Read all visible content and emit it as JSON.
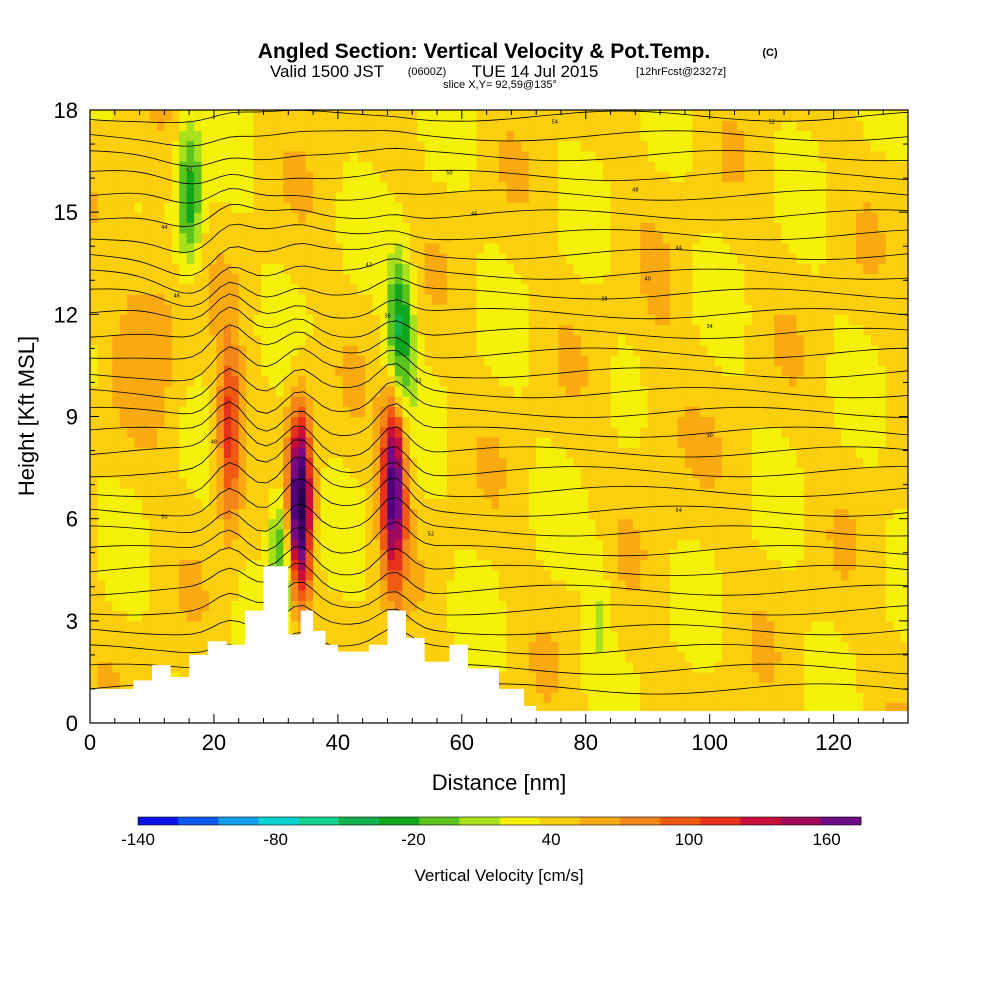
{
  "title": {
    "main": "Angled Section: Vertical Velocity & Pot.Temp.",
    "main_suffix": "(C)",
    "valid_a": "Valid 1500 JST",
    "valid_b": "(0600Z)",
    "valid_c": "TUE 14 Jul 2015",
    "valid_d": "[12hrFcst@2327z]",
    "slice": "slice X,Y= 92,59@135°"
  },
  "chart_data": {
    "type": "heatmap",
    "xlabel": "Distance [nm]",
    "ylabel": "Height [Kft MSL]",
    "xlim": [
      0,
      132
    ],
    "ylim": [
      0,
      18
    ],
    "x_ticks": [
      0,
      20,
      40,
      60,
      80,
      100,
      120
    ],
    "y_ticks": [
      0,
      3,
      6,
      9,
      12,
      15,
      18
    ],
    "colorbar": {
      "title": "Vertical Velocity [cm/s]",
      "tick_labels": [
        -140,
        -80,
        -20,
        40,
        100,
        160
      ],
      "levels": [
        -140,
        -125,
        -110,
        -95,
        -80,
        -65,
        -50,
        -35,
        -20,
        -5,
        10,
        25,
        40,
        55,
        70,
        85,
        100,
        115,
        130,
        145,
        160,
        175
      ],
      "colors": [
        "#0a14e6",
        "#0a5af0",
        "#12a0ec",
        "#0ad2d2",
        "#14d28c",
        "#10b44a",
        "#11a61c",
        "#5ac31e",
        "#a8e01c",
        "#f4f008",
        "#fbcf0d",
        "#f8aa10",
        "#f4861a",
        "#f05a12",
        "#e6321a",
        "#c80f3c",
        "#a00a5a",
        "#7a0a84",
        "#50007c",
        "#3c0064",
        "#28004c"
      ],
      "band_colors": [
        "#0a14e6",
        "#0a5af0",
        "#12a0ec",
        "#0ad2d2",
        "#14d28c",
        "#10b44a",
        "#11a61c",
        "#5ac31e",
        "#a8e01c",
        "#f4f008",
        "#fbcf0d",
        "#f8aa10",
        "#f4861a",
        "#f05a12",
        "#e6321a",
        "#c80f3c",
        "#a00a5a",
        "#6a0a84"
      ]
    },
    "terrain_kft": [
      [
        0,
        1.0
      ],
      [
        7,
        1.25
      ],
      [
        10,
        1.7
      ],
      [
        13,
        1.35
      ],
      [
        16,
        2.0
      ],
      [
        19,
        2.4
      ],
      [
        22,
        2.3
      ],
      [
        25,
        3.3
      ],
      [
        28,
        4.6
      ],
      [
        30,
        4.6
      ],
      [
        32,
        2.6
      ],
      [
        34,
        3.3
      ],
      [
        36,
        2.7
      ],
      [
        38,
        2.3
      ],
      [
        40,
        2.1
      ],
      [
        45,
        2.3
      ],
      [
        48,
        3.3
      ],
      [
        51,
        2.5
      ],
      [
        54,
        1.8
      ],
      [
        58,
        2.3
      ],
      [
        61,
        1.6
      ],
      [
        66,
        1.0
      ],
      [
        70,
        0.5
      ],
      [
        72,
        0.35
      ],
      [
        132,
        0.35
      ]
    ],
    "updraft_cores": [
      {
        "x": 33.8,
        "z": 6.4,
        "w": 160
      },
      {
        "x": 49,
        "z": 7.0,
        "w": 130
      },
      {
        "x": 22.5,
        "z": 8.5,
        "w": 70
      }
    ],
    "downdraft_bands": [
      {
        "x": 16,
        "z": 15.5,
        "w": -60
      },
      {
        "x": 50,
        "z": 11.5,
        "w": -70
      },
      {
        "x": 31,
        "z": 5.0,
        "w": -60
      }
    ],
    "isentrope_labels": [
      "54",
      "52",
      "50",
      "48",
      "46",
      "44",
      "42",
      "40",
      "38",
      "36",
      "34",
      "32",
      "30"
    ],
    "contour_count": 30
  }
}
